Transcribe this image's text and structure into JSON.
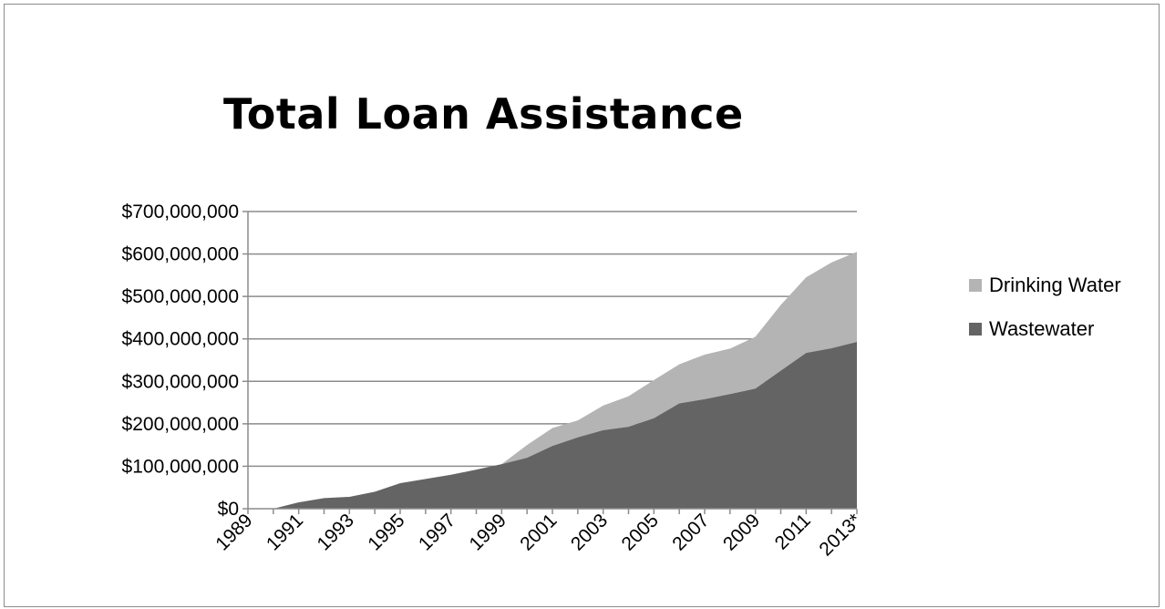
{
  "chart_data": {
    "type": "area",
    "stacked": true,
    "title": "Total Loan Assistance",
    "x": [
      "1989",
      "1990",
      "1991",
      "1992",
      "1993",
      "1994",
      "1995",
      "1996",
      "1997",
      "1998",
      "1999",
      "2000",
      "2001",
      "2002",
      "2003",
      "2004",
      "2005",
      "2006",
      "2007",
      "2008",
      "2009",
      "2010",
      "2011",
      "2012",
      "2013*"
    ],
    "x_tick_labels": [
      "1989",
      "1991",
      "1993",
      "1995",
      "1997",
      "1999",
      "2001",
      "2003",
      "2005",
      "2007",
      "2009",
      "2011",
      "2013*"
    ],
    "series": [
      {
        "name": "Wastewater",
        "color": "#646464",
        "values": [
          0,
          0,
          15000000,
          25000000,
          28000000,
          40000000,
          60000000,
          70000000,
          80000000,
          92000000,
          105000000,
          120000000,
          148000000,
          168000000,
          185000000,
          193000000,
          213000000,
          248000000,
          258000000,
          270000000,
          283000000,
          325000000,
          367000000,
          378000000,
          393000000
        ]
      },
      {
        "name": "Drinking Water",
        "color": "#b4b4b4",
        "values": [
          0,
          0,
          0,
          0,
          0,
          0,
          0,
          0,
          0,
          0,
          0,
          30000000,
          42000000,
          40000000,
          58000000,
          72000000,
          90000000,
          92000000,
          105000000,
          107000000,
          122000000,
          155000000,
          178000000,
          202000000,
          212000000
        ]
      }
    ],
    "ylim": [
      0,
      700000000
    ],
    "y_ticks": [
      "$0",
      "$100,000,000",
      "$200,000,000",
      "$300,000,000",
      "$400,000,000",
      "$500,000,000",
      "$600,000,000",
      "$700,000,000"
    ],
    "y_tick_values": [
      0,
      100000000,
      200000000,
      300000000,
      400000000,
      500000000,
      600000000,
      700000000
    ],
    "legend": [
      "Drinking Water",
      "Wastewater"
    ],
    "legend_position": "right",
    "grid": "horizontal",
    "xlabel": "",
    "ylabel": ""
  }
}
